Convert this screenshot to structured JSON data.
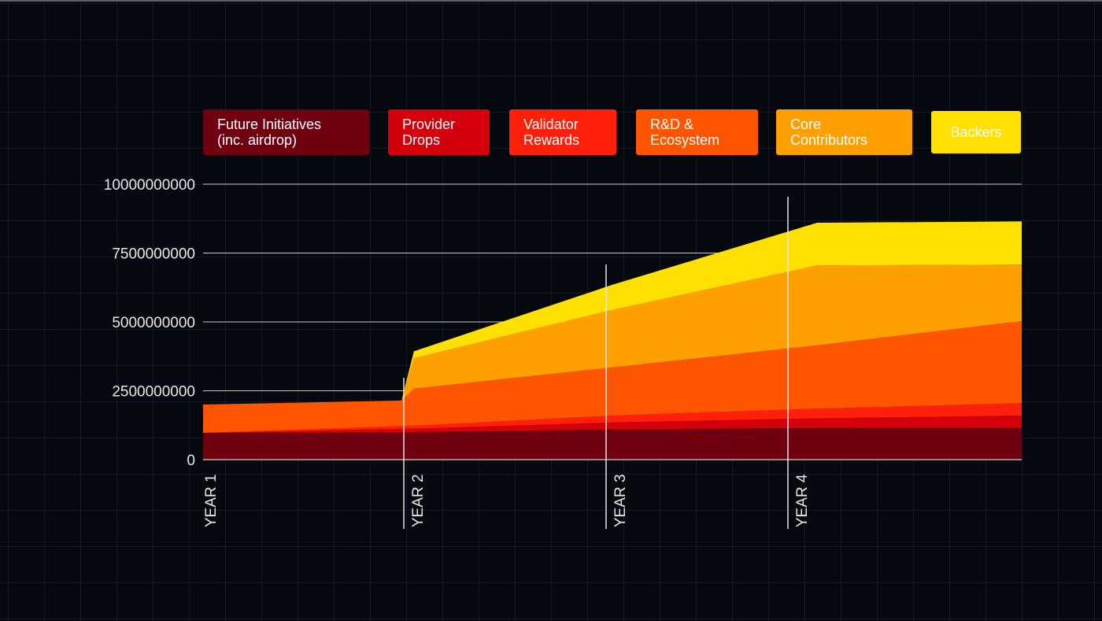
{
  "chart_data": {
    "type": "area",
    "stacked": true,
    "title": "",
    "xlabel": "",
    "ylabel": "",
    "categories": [
      "YEAR 1",
      "YEAR 2",
      "YEAR 3",
      "YEAR 4"
    ],
    "ylim": [
      0,
      10000000000
    ],
    "yticks": [
      0,
      2500000000,
      5000000000,
      7500000000,
      10000000000
    ],
    "grid": true,
    "legend_position": "top",
    "x": [
      1.0,
      1.97,
      2.03,
      3.0,
      4.0,
      5.0
    ],
    "series": [
      {
        "name": "Future Initiatives\n(inc. airdrop)",
        "color": "#6e0010",
        "values": [
          970000000,
          1000000000,
          1000000000,
          1100000000,
          1150000000,
          1150000000
        ]
      },
      {
        "name": "Provider\nDrops",
        "color": "#d4000c",
        "values": [
          0,
          120000000,
          120000000,
          250000000,
          350000000,
          450000000
        ]
      },
      {
        "name": "Validator\nRewards",
        "color": "#ff1f0a",
        "values": [
          0,
          100000000,
          110000000,
          250000000,
          350000000,
          450000000
        ]
      },
      {
        "name": "R&D &\nEcosystem",
        "color": "#ff5500",
        "values": [
          1030000000,
          930000000,
          1350000000,
          1750000000,
          2300000000,
          2980000000
        ]
      },
      {
        "name": "Core\nContributors",
        "color": "#ffa000",
        "values": [
          0,
          0,
          1100000000,
          2080000000,
          2900000000,
          2050000000
        ]
      },
      {
        "name": "Backers",
        "color": "#ffe000",
        "values": [
          0,
          0,
          250000000,
          920000000,
          1550000000,
          1570000000
        ]
      }
    ]
  }
}
